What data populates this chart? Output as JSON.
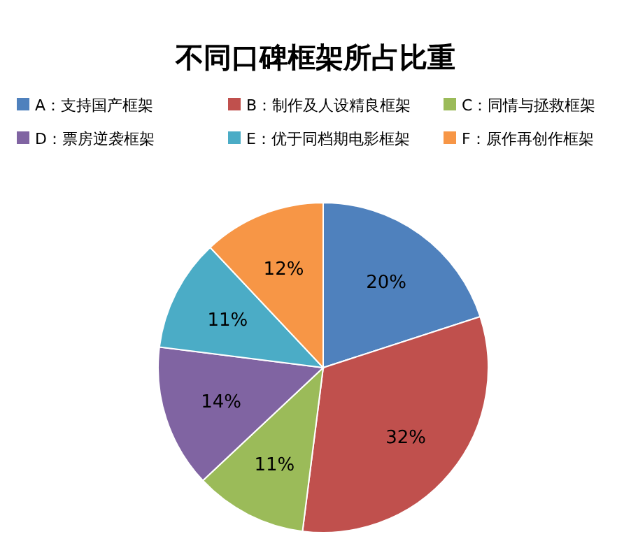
{
  "chart_data": {
    "type": "pie",
    "title": "不同口碑框架所占比重",
    "categories": [
      "A：支持国产框架",
      "B：制作及人设精良框架",
      "C：同情与拯救框架",
      "D：票房逆袭框架",
      "E：优于同档期电影框架",
      "F：原作再创作框架"
    ],
    "values": [
      20,
      32,
      11,
      14,
      11,
      12
    ],
    "value_labels": [
      "20%",
      "32%",
      "11%",
      "14%",
      "11%",
      "12%"
    ],
    "colors": [
      "#4f81bd",
      "#c0504d",
      "#9bbb59",
      "#8064a2",
      "#4bacc6",
      "#f79646"
    ],
    "legend": "top"
  }
}
